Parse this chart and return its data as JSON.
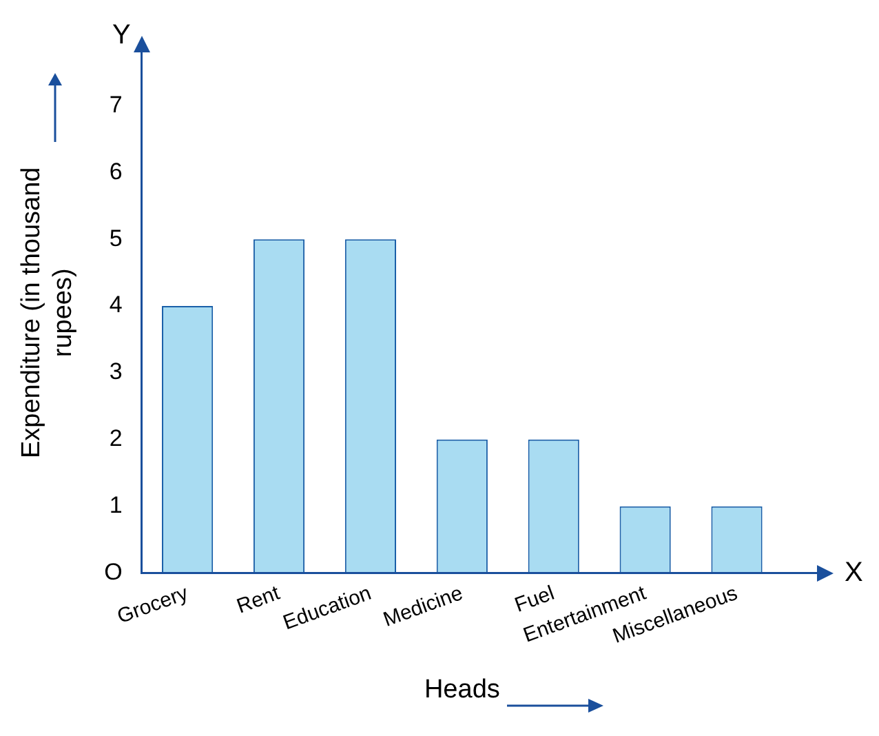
{
  "chart_data": {
    "type": "bar",
    "xlabel": "Heads",
    "ylabel": "Expenditure (in thousand rupees)",
    "categories": [
      "Grocery",
      "Rent",
      "Education",
      "Medicine",
      "Fuel",
      "Entertainment",
      "Miscellaneous"
    ],
    "values": [
      4,
      5,
      5,
      2,
      2,
      1,
      1
    ],
    "color": "#a9dcf2",
    "ylim": [
      0,
      7.8
    ],
    "yticks": [
      {
        "value": 0,
        "label": "O"
      },
      1,
      2,
      3,
      4,
      5,
      6,
      7
    ],
    "grid": false,
    "legend": false,
    "annotations": [
      "Y",
      "X"
    ]
  }
}
